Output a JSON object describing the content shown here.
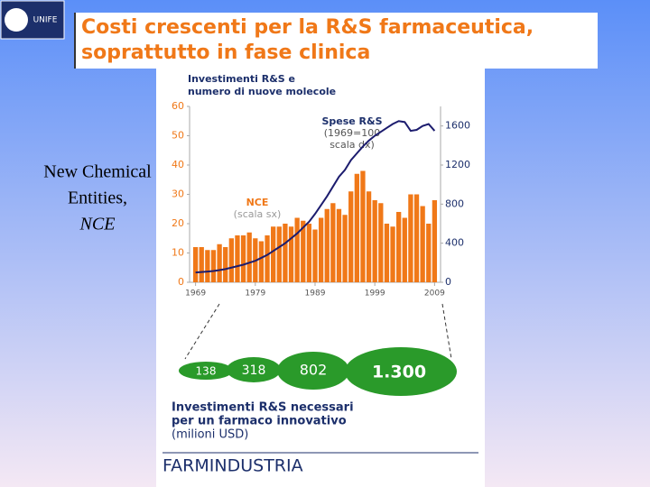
{
  "slide": {
    "logo": "UNIFE",
    "title_lines": [
      "Costi crescenti per la R&S farmaceutica,",
      "soprattutto in fase clinica"
    ],
    "side_label": [
      "New Chemical",
      "Entities,",
      "NCE"
    ],
    "bubbles": [
      "138",
      "318",
      "802",
      "1.300"
    ],
    "footnote_lines": [
      "Investimenti R&S necessari",
      "per  un farmaco innovativo",
      "(milioni USD)"
    ],
    "brand": "FARMINDUSTRIA"
  },
  "chart_data": {
    "type": "bar",
    "title_lines": [
      "Investimenti R&S e",
      "numero di nuove molecole"
    ],
    "x": [
      1969,
      1970,
      1971,
      1972,
      1973,
      1974,
      1975,
      1976,
      1977,
      1978,
      1979,
      1980,
      1981,
      1982,
      1983,
      1984,
      1985,
      1986,
      1987,
      1988,
      1989,
      1990,
      1991,
      1992,
      1993,
      1994,
      1995,
      1996,
      1997,
      1998,
      1999,
      2000,
      2001,
      2002,
      2003,
      2004,
      2005,
      2006,
      2007,
      2008,
      2009
    ],
    "xlim": [
      1968,
      2010
    ],
    "xticks": [
      1969,
      1979,
      1989,
      1999,
      2009
    ],
    "series": [
      {
        "name": "NCE",
        "color": "#f07818",
        "values": [
          12,
          12,
          11,
          11,
          13,
          12,
          15,
          16,
          16,
          17,
          15,
          14,
          16,
          19,
          19,
          20,
          19,
          22,
          21,
          20,
          18,
          22,
          25,
          27,
          25,
          23,
          31,
          37,
          38,
          31,
          28,
          27,
          20,
          19,
          24,
          22,
          30,
          30,
          26,
          20,
          28
        ]
      },
      {
        "name": "Spese R&S",
        "type": "line",
        "axis": "y2",
        "color": "#1c1c6e",
        "values": [
          100,
          105,
          110,
          115,
          125,
          135,
          150,
          165,
          180,
          200,
          220,
          250,
          280,
          320,
          360,
          400,
          450,
          500,
          560,
          620,
          700,
          790,
          880,
          980,
          1080,
          1150,
          1250,
          1320,
          1390,
          1450,
          1500,
          1540,
          1580,
          1620,
          1650,
          1640,
          1550,
          1560,
          1600,
          1620,
          1550
        ]
      }
    ],
    "annotations": [
      {
        "lines": [
          "Spese R&S",
          "(1969=100",
          "scala dx)"
        ]
      },
      {
        "lines": [
          "NCE",
          "(scala sx)"
        ]
      }
    ],
    "ylim": [
      0,
      60
    ],
    "yticks": [
      0,
      10,
      20,
      30,
      40,
      50,
      60
    ],
    "y2lim": [
      0,
      1800
    ],
    "y2ticks": [
      0,
      400,
      800,
      1200,
      1600
    ]
  }
}
